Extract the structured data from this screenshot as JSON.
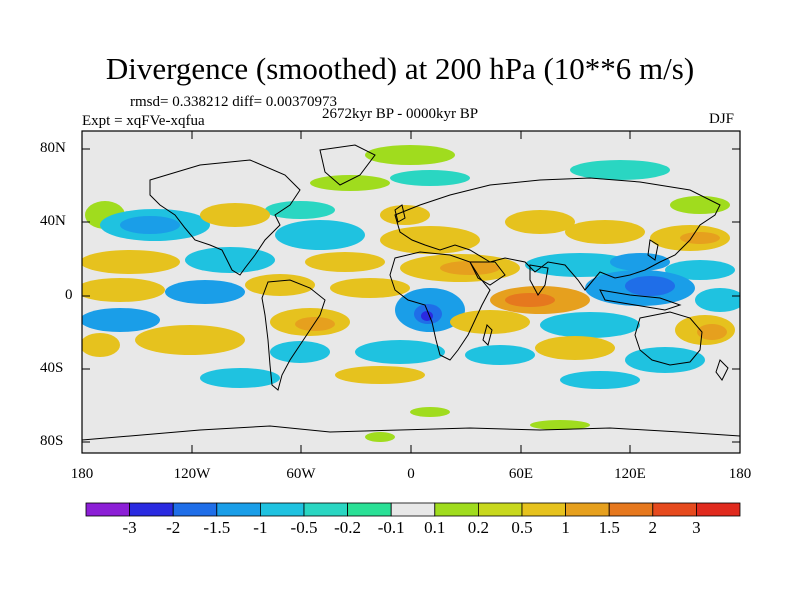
{
  "title": "Divergence (smoothed) at 200 hPa (10**6 m/s)",
  "stats": "rmsd= 0.338212 diff= 0.00370973",
  "experiment": "Expt = xqFVe-xqfua",
  "period": "2672kyr BP - 0000kyr BP",
  "season": "DJF",
  "lat_labels": [
    "80N",
    "40N",
    "0",
    "40S",
    "80S"
  ],
  "lon_labels": [
    "180",
    "120W",
    "60W",
    "0",
    "60E",
    "120E",
    "180"
  ],
  "colorbar": {
    "colors": [
      "#8c1fd6",
      "#2a2ae0",
      "#1f6ee8",
      "#1a9ee8",
      "#1fc2e0",
      "#2ad6c2",
      "#2ae096",
      "#e8e8e8",
      "#a0dc1e",
      "#c8d81e",
      "#e6c21e",
      "#e6a01e",
      "#e6781e",
      "#e64a1e",
      "#e02a1e"
    ],
    "labels": [
      "-3",
      "-2",
      "-1.5",
      "-1",
      "-0.5",
      "-0.2",
      "-0.1",
      "0.1",
      "0.2",
      "0.5",
      "1",
      "1.5",
      "2",
      "3"
    ]
  }
}
